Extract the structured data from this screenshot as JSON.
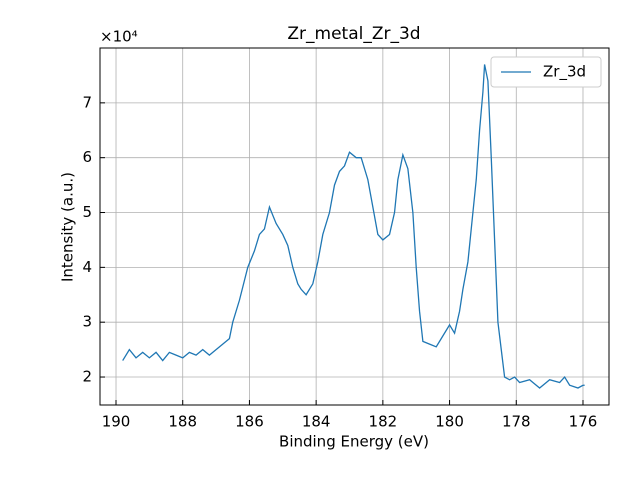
{
  "chart_data": {
    "type": "line",
    "title": "Zr_metal_Zr_3d",
    "xlabel": "Binding Energy (eV)",
    "ylabel": "Intensity (a.u.)",
    "y_offset_label": "×10⁴",
    "x": [
      189.8,
      189.6,
      189.4,
      189.2,
      189.0,
      188.8,
      188.6,
      188.4,
      188.2,
      188.0,
      187.8,
      187.6,
      187.4,
      187.2,
      187.0,
      186.8,
      186.6,
      186.5,
      186.3,
      186.05,
      185.85,
      185.7,
      185.55,
      185.4,
      185.2,
      185.0,
      184.85,
      184.7,
      184.55,
      184.45,
      184.3,
      184.1,
      183.95,
      183.8,
      183.6,
      183.45,
      183.3,
      183.15,
      183.0,
      182.8,
      182.65,
      182.45,
      182.3,
      182.15,
      182.0,
      181.8,
      181.65,
      181.55,
      181.4,
      181.25,
      181.1,
      181.0,
      180.9,
      180.8,
      180.6,
      180.4,
      180.25,
      180.0,
      179.85,
      179.7,
      179.6,
      179.45,
      179.35,
      179.2,
      179.1,
      179.0,
      178.95,
      178.85,
      178.75,
      178.65,
      178.55,
      178.45,
      178.35,
      178.2,
      178.05,
      177.9,
      177.6,
      177.3,
      177.0,
      176.7,
      176.55,
      176.4,
      176.15,
      176.0,
      175.95
    ],
    "series": [
      {
        "name": "Zr_3d",
        "color": "#1f77b4",
        "values": [
          2.3,
          2.5,
          2.35,
          2.45,
          2.35,
          2.45,
          2.3,
          2.45,
          2.4,
          2.35,
          2.45,
          2.4,
          2.5,
          2.4,
          2.5,
          2.6,
          2.7,
          3.0,
          3.4,
          4.0,
          4.3,
          4.6,
          4.7,
          5.1,
          4.8,
          4.6,
          4.4,
          4.0,
          3.7,
          3.6,
          3.5,
          3.7,
          4.1,
          4.6,
          5.0,
          5.5,
          5.75,
          5.85,
          6.1,
          6.0,
          6.0,
          5.6,
          5.1,
          4.6,
          4.5,
          4.6,
          5.0,
          5.6,
          6.05,
          5.8,
          5.0,
          4.0,
          3.2,
          2.65,
          2.6,
          2.55,
          2.7,
          2.95,
          2.8,
          3.2,
          3.6,
          4.1,
          4.7,
          5.6,
          6.5,
          7.2,
          7.7,
          7.4,
          6.0,
          4.5,
          3.0,
          2.5,
          2.0,
          1.95,
          2.0,
          1.9,
          1.95,
          1.8,
          1.95,
          1.9,
          2.0,
          1.85,
          1.8,
          1.85,
          1.85
        ]
      }
    ],
    "xlim": [
      190.48,
      175.22
    ],
    "xticks": [
      190,
      188,
      186,
      184,
      182,
      180,
      178,
      176
    ],
    "ylim": [
      1.49,
      8.0
    ],
    "yticks": [
      2,
      3,
      4,
      5,
      6,
      7
    ],
    "grid": true,
    "legend": "upper right"
  }
}
